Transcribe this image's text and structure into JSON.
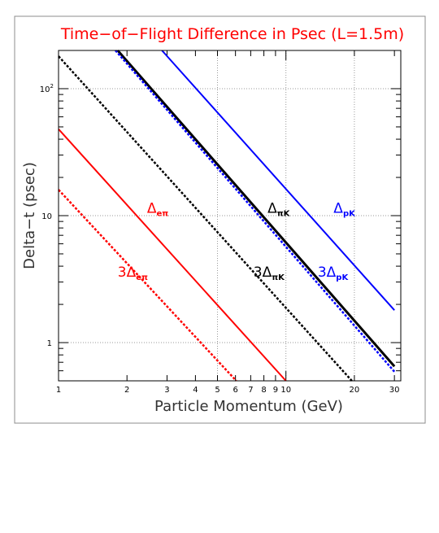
{
  "chart_data": {
    "type": "line",
    "title": "Time−of−Flight Difference in Psec (L=1.5m)",
    "xlabel": "Particle Momentum (GeV)",
    "ylabel": "Delta−t (psec)",
    "x_scale": "log",
    "y_scale": "log",
    "xlim": [
      1,
      32
    ],
    "ylim": [
      0.5,
      200
    ],
    "grid": true,
    "x_ticks": [
      {
        "value": 1,
        "label": "1"
      },
      {
        "value": 2,
        "label": "2"
      },
      {
        "value": 3,
        "label": "3"
      },
      {
        "value": 4,
        "label": "4"
      },
      {
        "value": 5,
        "label": "5"
      },
      {
        "value": 6,
        "label": "6"
      },
      {
        "value": 7,
        "label": "7"
      },
      {
        "value": 8,
        "label": "8"
      },
      {
        "value": 9,
        "label": "9"
      },
      {
        "value": 10,
        "label": "10"
      },
      {
        "value": 20,
        "label": "20"
      },
      {
        "value": 30,
        "label": "30"
      }
    ],
    "y_ticks": [
      {
        "value": 1,
        "label": "1"
      },
      {
        "value": 10,
        "label": "10"
      },
      {
        "value": 100,
        "label": "10",
        "exponent": "2"
      }
    ],
    "series": [
      {
        "name": "Δeπ",
        "sub": "eπ",
        "prefix": "",
        "color": "#ff0000",
        "style": "solid",
        "x": [
          1,
          10
        ],
        "y": [
          48,
          0.5
        ],
        "label_pos": [
          2.45,
          10.5
        ]
      },
      {
        "name": "3Δeπ",
        "sub": "eπ",
        "prefix": "3",
        "color": "#ff0000",
        "style": "dotted",
        "x": [
          1,
          6.05
        ],
        "y": [
          16,
          0.5
        ],
        "label_pos": [
          1.82,
          3.3
        ]
      },
      {
        "name": "ΔπK",
        "sub": "πK",
        "prefix": "",
        "color": "#000000",
        "style": "solid",
        "x": [
          1.82,
          30
        ],
        "y": [
          200,
          0.65
        ],
        "label_pos": [
          8.3,
          10.5
        ]
      },
      {
        "name": "3ΔπK",
        "sub": "πK",
        "prefix": "3",
        "color": "#000000",
        "style": "dotted",
        "x": [
          1,
          19.5
        ],
        "y": [
          180,
          0.5
        ],
        "label_pos": [
          7.2,
          3.3
        ]
      },
      {
        "name": "ΔpK",
        "sub": "pK",
        "prefix": "",
        "color": "#0000ff",
        "style": "solid",
        "x": [
          2.85,
          30
        ],
        "y": [
          200,
          1.8
        ],
        "label_pos": [
          16.2,
          10.5
        ]
      },
      {
        "name": "3ΔpK",
        "sub": "pK",
        "prefix": "3",
        "color": "#0000ff",
        "style": "dotted",
        "x": [
          1.78,
          30
        ],
        "y": [
          200,
          0.59
        ],
        "label_pos": [
          13.8,
          3.3
        ]
      }
    ]
  }
}
